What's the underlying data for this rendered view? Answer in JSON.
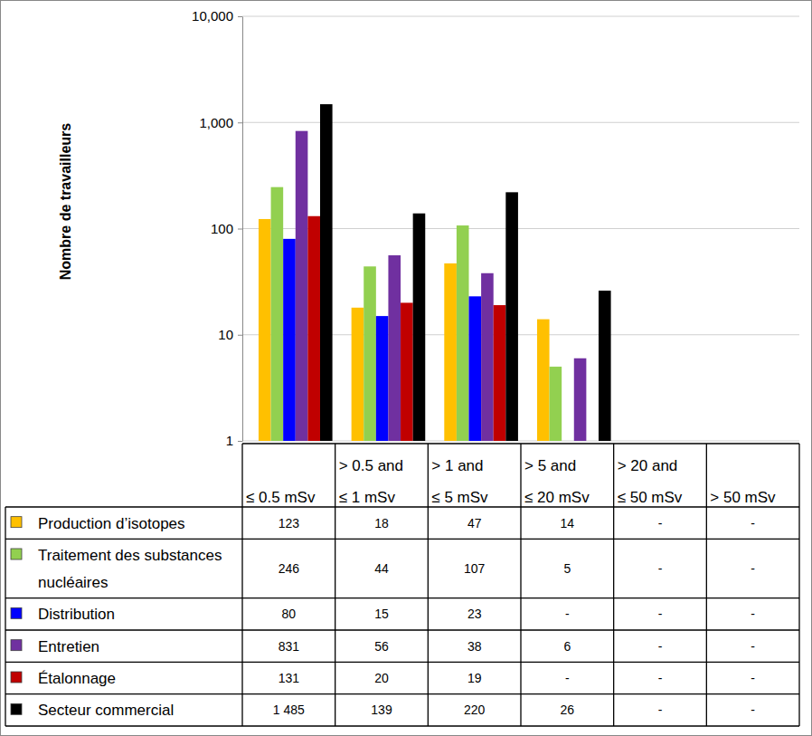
{
  "chart_data": {
    "type": "bar",
    "ylabel": "Nombre de travailleurs",
    "categories": [
      "≤ 0.5 mSv",
      "> 0.5 and ≤ 1 mSv",
      "> 1 and ≤ 5 mSv",
      "> 5 and ≤ 20 mSv",
      "> 20 and ≤ 50 mSv",
      "> 50 mSv"
    ],
    "series": [
      {
        "name": "Production d’isotopes",
        "color": "#ffc000",
        "values": [
          123,
          18,
          47,
          14,
          null,
          null
        ],
        "value_labels": [
          "123",
          "18",
          "47",
          "14",
          "-",
          "-"
        ]
      },
      {
        "name": "Traitement des substances nucléaires",
        "color": "#92d050",
        "values": [
          246,
          44,
          107,
          5,
          null,
          null
        ],
        "value_labels": [
          "246",
          "44",
          "107",
          "5",
          "-",
          "-"
        ]
      },
      {
        "name": "Distribution",
        "color": "#0000ff",
        "values": [
          80,
          15,
          23,
          null,
          null,
          null
        ],
        "value_labels": [
          "80",
          "15",
          "23",
          "-",
          "-",
          "-"
        ]
      },
      {
        "name": "Entretien",
        "color": "#7030a0",
        "values": [
          831,
          56,
          38,
          6,
          null,
          null
        ],
        "value_labels": [
          "831",
          "56",
          "38",
          "6",
          "-",
          "-"
        ]
      },
      {
        "name": "Étalonnage",
        "color": "#c00000",
        "values": [
          131,
          20,
          19,
          null,
          null,
          null
        ],
        "value_labels": [
          "131",
          "20",
          "19",
          "-",
          "-",
          "-"
        ]
      },
      {
        "name": "Secteur commercial",
        "color": "#000000",
        "values": [
          1485,
          139,
          220,
          26,
          null,
          null
        ],
        "value_labels": [
          "1 485",
          "139",
          "220",
          "26",
          "-",
          "-"
        ]
      }
    ],
    "log": "y",
    "ylim": [
      1,
      10000
    ],
    "yticks": [
      1,
      10,
      100,
      {
        "value": 1000,
        "label": "1,000"
      },
      {
        "value": 10000,
        "label": "10,000"
      }
    ],
    "grid": true
  }
}
